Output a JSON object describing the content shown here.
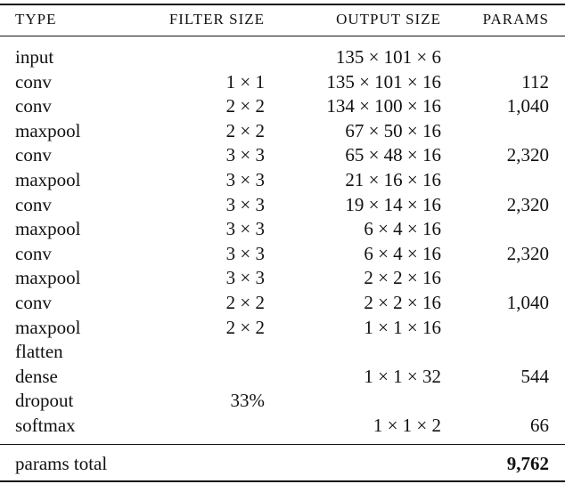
{
  "table": {
    "header": [
      "TYPE",
      "FILTER SIZE",
      "OUTPUT SIZE",
      "PARAMS"
    ],
    "rows": [
      [
        "input",
        null,
        "135 × 101 × 6",
        null
      ],
      [
        "conv",
        "1 × 1",
        "135 × 101 × 16",
        "112"
      ],
      [
        "conv",
        "2 × 2",
        "134 × 100 × 16",
        "1,040"
      ],
      [
        "maxpool",
        "2 × 2",
        "67 × 50 × 16",
        null
      ],
      [
        "conv",
        "3 × 3",
        "65 × 48 × 16",
        "2,320"
      ],
      [
        "maxpool",
        "3 × 3",
        "21 × 16 × 16",
        null
      ],
      [
        "conv",
        "3 × 3",
        "19 × 14 × 16",
        "2,320"
      ],
      [
        "maxpool",
        "3 × 3",
        "6 × 4 × 16",
        null
      ],
      [
        "conv",
        "3 × 3",
        "6 × 4 × 16",
        "2,320"
      ],
      [
        "maxpool",
        "3 × 3",
        "2 × 2 × 16",
        null
      ],
      [
        "conv",
        "2 × 2",
        "2 × 2 × 16",
        "1,040"
      ],
      [
        "maxpool",
        "2 × 2",
        "1 × 1 × 16",
        null
      ],
      [
        "flatten",
        null,
        null,
        null
      ],
      [
        "dense",
        null,
        "1 × 1 × 32",
        "544"
      ],
      [
        "dropout",
        "33%",
        null,
        null
      ],
      [
        "softmax",
        null,
        "1 × 1 × 2",
        "66"
      ]
    ],
    "total": {
      "label": "params total",
      "value": "9,762"
    }
  }
}
